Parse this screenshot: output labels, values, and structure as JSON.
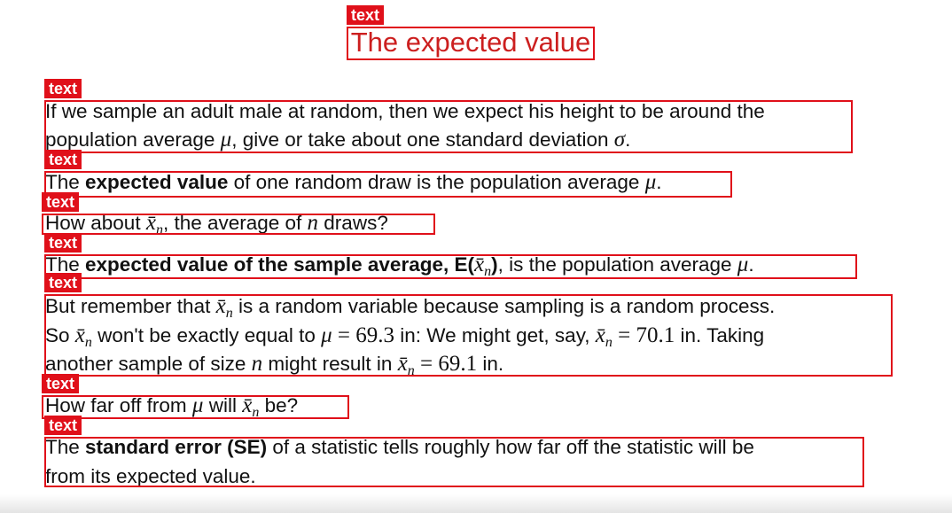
{
  "title": "The expected value",
  "box_label": "text",
  "paragraphs": [
    {
      "lines": [
        [
          {
            "text": "If we sample an adult male at random, then we expect his height to be around the"
          }
        ],
        [
          {
            "text": "population average "
          },
          {
            "text": "μ",
            "style": "math"
          },
          {
            "text": ", give or take about one standard deviation "
          },
          {
            "text": "σ",
            "style": "math"
          },
          {
            "text": "."
          }
        ]
      ]
    },
    {
      "lines": [
        [
          {
            "text": "The "
          },
          {
            "text": "expected value",
            "style": "b"
          },
          {
            "text": " of one random draw is the population average "
          },
          {
            "text": "μ",
            "style": "math"
          },
          {
            "text": "."
          }
        ]
      ]
    },
    {
      "lines": [
        [
          {
            "text": "How about "
          },
          {
            "text": "x̄",
            "style": "math"
          },
          {
            "text": "n",
            "style": "sub"
          },
          {
            "text": ", the average of "
          },
          {
            "text": "n",
            "style": "math"
          },
          {
            "text": " draws?"
          }
        ]
      ]
    },
    {
      "lines": [
        [
          {
            "text": "The "
          },
          {
            "text": "expected value of the sample average, E(",
            "style": "b"
          },
          {
            "text": "x̄",
            "style": "math"
          },
          {
            "text": "n",
            "style": "sub"
          },
          {
            "text": ")",
            "style": "b"
          },
          {
            "text": ", is the population average "
          },
          {
            "text": "μ",
            "style": "math"
          },
          {
            "text": "."
          }
        ]
      ]
    },
    {
      "lines": [
        [
          {
            "text": "But remember that "
          },
          {
            "text": "x̄",
            "style": "math"
          },
          {
            "text": "n",
            "style": "sub"
          },
          {
            "text": " is a random variable because sampling is a random process."
          }
        ],
        [
          {
            "text": "So "
          },
          {
            "text": "x̄",
            "style": "math"
          },
          {
            "text": "n",
            "style": "sub"
          },
          {
            "text": " won't be exactly equal to "
          },
          {
            "text": "μ",
            "style": "math"
          },
          {
            "text": " = 69.3",
            "style": "num"
          },
          {
            "text": " in: We might get, say, "
          },
          {
            "text": "x̄",
            "style": "math"
          },
          {
            "text": "n",
            "style": "sub"
          },
          {
            "text": " = 70.1",
            "style": "num"
          },
          {
            "text": " in.  Taking"
          }
        ],
        [
          {
            "text": "another sample of size "
          },
          {
            "text": "n",
            "style": "math"
          },
          {
            "text": " might result in "
          },
          {
            "text": "x̄",
            "style": "math"
          },
          {
            "text": "n",
            "style": "sub"
          },
          {
            "text": " = 69.1",
            "style": "num"
          },
          {
            "text": " in."
          }
        ]
      ]
    },
    {
      "lines": [
        [
          {
            "text": "How far off from "
          },
          {
            "text": "μ",
            "style": "math"
          },
          {
            "text": " will "
          },
          {
            "text": "x̄",
            "style": "math"
          },
          {
            "text": "n",
            "style": "sub"
          },
          {
            "text": " be?"
          }
        ]
      ]
    },
    {
      "lines": [
        [
          {
            "text": "The "
          },
          {
            "text": "standard error (SE)",
            "style": "b"
          },
          {
            "text": " of a statistic tells roughly how far off the statistic will be"
          }
        ],
        [
          {
            "text": "from its expected value."
          }
        ]
      ]
    }
  ]
}
